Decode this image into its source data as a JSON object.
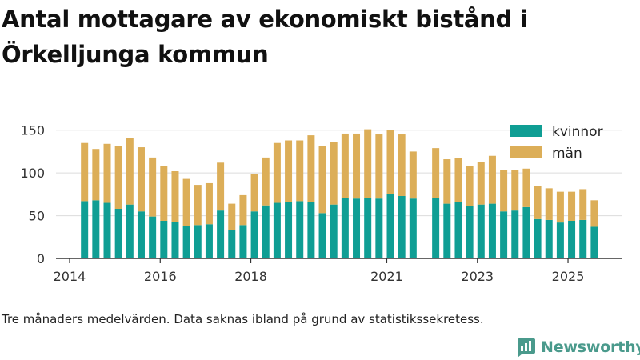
{
  "title": "Antal mottagare av ekonomiskt bistånd i Örkelljunga kommun",
  "footnote": "Tre månaders medelvärden. Data saknas ibland på grund av statistikssekretess.",
  "brand": {
    "name": "Newsworthy",
    "color": "#4a9a8c",
    "logo": "bar-chart-logo-icon"
  },
  "colors": {
    "kvinnor": "#0f9e94",
    "man": "#dcae58",
    "grid": "#dcdcdc",
    "axis": "#333333"
  },
  "chart_data": {
    "type": "bar",
    "stacked": true,
    "x_range": [
      2013.7,
      2026.2
    ],
    "ylim": [
      0,
      160
    ],
    "yticks": [
      0,
      50,
      100,
      150
    ],
    "xticks": [
      {
        "value": 2014,
        "label": "2014"
      },
      {
        "value": 2016,
        "label": "2016"
      },
      {
        "value": 2018,
        "label": "2018"
      },
      {
        "value": 2021,
        "label": "2021"
      },
      {
        "value": 2023,
        "label": "2023"
      },
      {
        "value": 2025,
        "label": "2025"
      }
    ],
    "legend": {
      "placement": "top-right",
      "entries": [
        "kvinnor",
        "män"
      ]
    },
    "x": [
      2014.33,
      2014.58,
      2014.83,
      2015.08,
      2015.33,
      2015.58,
      2015.83,
      2016.08,
      2016.33,
      2016.58,
      2016.83,
      2017.08,
      2017.33,
      2017.58,
      2017.83,
      2018.08,
      2018.33,
      2018.58,
      2018.83,
      2019.08,
      2019.33,
      2019.58,
      2019.83,
      2020.08,
      2020.33,
      2020.58,
      2020.83,
      2021.08,
      2021.33,
      2021.58,
      2022.08,
      2022.33,
      2022.58,
      2022.83,
      2023.08,
      2023.33,
      2023.58,
      2023.83,
      2024.08,
      2024.33,
      2024.58,
      2024.83,
      2025.08,
      2025.33,
      2025.58
    ],
    "series": [
      {
        "name": "kvinnor",
        "color": "#0f9e94",
        "values": [
          67,
          68,
          65,
          58,
          63,
          55,
          49,
          44,
          43,
          38,
          39,
          40,
          56,
          33,
          39,
          55,
          62,
          65,
          66,
          67,
          66,
          53,
          63,
          71,
          70,
          71,
          70,
          75,
          73,
          70,
          71,
          64,
          66,
          61,
          63,
          64,
          55,
          56,
          60,
          46,
          45,
          42,
          44,
          45,
          37
        ]
      },
      {
        "name": "män",
        "color": "#dcae58",
        "values": [
          68,
          60,
          69,
          73,
          78,
          75,
          69,
          64,
          59,
          55,
          47,
          48,
          56,
          31,
          35,
          44,
          56,
          70,
          72,
          71,
          78,
          78,
          73,
          75,
          76,
          80,
          75,
          75,
          72,
          55,
          58,
          52,
          51,
          47,
          50,
          56,
          48,
          47,
          45,
          39,
          37,
          36,
          34,
          36,
          31
        ]
      }
    ]
  }
}
